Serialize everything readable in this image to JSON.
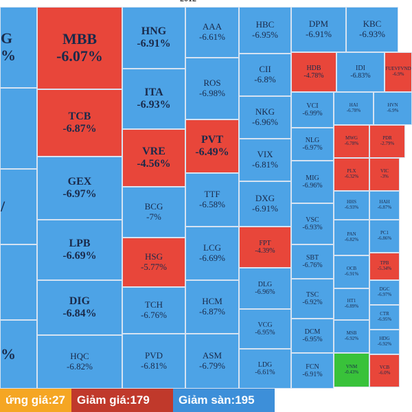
{
  "top_clipped_label": "2012",
  "colors": {
    "up_blue": "#4da3e6",
    "down_red": "#e8463a",
    "ref_green": "#39c23a"
  },
  "tiles": [
    {
      "name": "tile-edge-1",
      "ticker": "G",
      "change": "%",
      "color": "blue"
    },
    {
      "name": "tile-edge-2",
      "ticker": "",
      "change": "",
      "color": "blue"
    },
    {
      "name": "tile-edge-3",
      "ticker": "",
      "change": "/",
      "color": "blue"
    },
    {
      "name": "tile-edge-4",
      "ticker": "",
      "change": "",
      "color": "blue"
    },
    {
      "name": "tile-edge-5",
      "ticker": "",
      "change": "%",
      "color": "blue"
    },
    {
      "name": "tile-mbb",
      "ticker": "MBB",
      "change": "-6.07%",
      "color": "red"
    },
    {
      "name": "tile-tcb",
      "ticker": "TCB",
      "change": "-6.87%",
      "color": "red"
    },
    {
      "name": "tile-gex",
      "ticker": "GEX",
      "change": "-6.97%",
      "color": "blue"
    },
    {
      "name": "tile-lpb",
      "ticker": "LPB",
      "change": "-6.69%",
      "color": "blue"
    },
    {
      "name": "tile-dig",
      "ticker": "DIG",
      "change": "-6.84%",
      "color": "blue"
    },
    {
      "name": "tile-hqc",
      "ticker": "HQC",
      "change": "-6.82%",
      "color": "blue"
    },
    {
      "name": "tile-hng",
      "ticker": "HNG",
      "change": "-6.91%",
      "color": "blue"
    },
    {
      "name": "tile-ita",
      "ticker": "ITA",
      "change": "-6.93%",
      "color": "blue"
    },
    {
      "name": "tile-vre",
      "ticker": "VRE",
      "change": "-4.56%",
      "color": "red"
    },
    {
      "name": "tile-bcg",
      "ticker": "BCG",
      "change": "-7%",
      "color": "blue"
    },
    {
      "name": "tile-hsg",
      "ticker": "HSG",
      "change": "-5.77%",
      "color": "red"
    },
    {
      "name": "tile-tch",
      "ticker": "TCH",
      "change": "-6.76%",
      "color": "blue"
    },
    {
      "name": "tile-pvd",
      "ticker": "PVD",
      "change": "-6.81%",
      "color": "blue"
    },
    {
      "name": "tile-aaa",
      "ticker": "AAA",
      "change": "-6.61%",
      "color": "blue"
    },
    {
      "name": "tile-ros",
      "ticker": "ROS",
      "change": "-6.98%",
      "color": "blue"
    },
    {
      "name": "tile-pvt",
      "ticker": "PVT",
      "change": "-6.49%",
      "color": "red"
    },
    {
      "name": "tile-ttf",
      "ticker": "TTF",
      "change": "-6.58%",
      "color": "blue"
    },
    {
      "name": "tile-lcg",
      "ticker": "LCG",
      "change": "-6.69%",
      "color": "blue"
    },
    {
      "name": "tile-hcm",
      "ticker": "HCM",
      "change": "-6.87%",
      "color": "blue"
    },
    {
      "name": "tile-asm",
      "ticker": "ASM",
      "change": "-6.79%",
      "color": "blue"
    },
    {
      "name": "tile-hbc",
      "ticker": "HBC",
      "change": "-6.95%",
      "color": "blue"
    },
    {
      "name": "tile-cii",
      "ticker": "CII",
      "change": "-6.8%",
      "color": "blue"
    },
    {
      "name": "tile-nkg",
      "ticker": "NKG",
      "change": "-6.96%",
      "color": "blue"
    },
    {
      "name": "tile-vix",
      "ticker": "VIX",
      "change": "-6.81%",
      "color": "blue"
    },
    {
      "name": "tile-dxg",
      "ticker": "DXG",
      "change": "-6.91%",
      "color": "blue"
    },
    {
      "name": "tile-fpt",
      "ticker": "FPT",
      "change": "-4.39%",
      "color": "red"
    },
    {
      "name": "tile-dlg",
      "ticker": "DLG",
      "change": "-6.96%",
      "color": "blue"
    },
    {
      "name": "tile-vcg",
      "ticker": "VCG",
      "change": "-6.95%",
      "color": "blue"
    },
    {
      "name": "tile-ldg",
      "ticker": "LDG",
      "change": "-6.61%",
      "color": "blue"
    },
    {
      "name": "tile-dpm",
      "ticker": "DPM",
      "change": "-6.91%",
      "color": "blue"
    },
    {
      "name": "tile-hdb",
      "ticker": "HDB",
      "change": "-4.78%",
      "color": "red"
    },
    {
      "name": "tile-vci",
      "ticker": "VCI",
      "change": "-6.99%",
      "color": "blue"
    },
    {
      "name": "tile-nlg",
      "ticker": "NLG",
      "change": "-6.97%",
      "color": "blue"
    },
    {
      "name": "tile-mig",
      "ticker": "MIG",
      "change": "-6.96%",
      "color": "blue"
    },
    {
      "name": "tile-vsc",
      "ticker": "VSC",
      "change": "-6.93%",
      "color": "blue"
    },
    {
      "name": "tile-sbt",
      "ticker": "SBT",
      "change": "-6.76%",
      "color": "blue"
    },
    {
      "name": "tile-tsc",
      "ticker": "TSC",
      "change": "-6.92%",
      "color": "blue"
    },
    {
      "name": "tile-dcm",
      "ticker": "DCM",
      "change": "-6.95%",
      "color": "blue"
    },
    {
      "name": "tile-fcn",
      "ticker": "FCN",
      "change": "-6.91%",
      "color": "blue"
    },
    {
      "name": "tile-kbc",
      "ticker": "KBC",
      "change": "-6.93%",
      "color": "blue"
    },
    {
      "name": "tile-idi",
      "ticker": "IDI",
      "change": "-6.83%",
      "color": "blue"
    },
    {
      "name": "tile-hai",
      "ticker": "HAI",
      "change": "-6.78%",
      "color": "blue"
    },
    {
      "name": "tile-mwg",
      "ticker": "MWG",
      "change": "-6.78%",
      "color": "red"
    },
    {
      "name": "tile-plx",
      "ticker": "PLX",
      "change": "-6.32%",
      "color": "red"
    },
    {
      "name": "tile-hhs",
      "ticker": "HHS",
      "change": "-6.93%",
      "color": "blue"
    },
    {
      "name": "tile-pan",
      "ticker": "PAN",
      "change": "-6.82%",
      "color": "blue"
    },
    {
      "name": "tile-ocb",
      "ticker": "OCB",
      "change": "-6.91%",
      "color": "blue"
    },
    {
      "name": "tile-ht1",
      "ticker": "HT1",
      "change": "-6.89%",
      "color": "blue"
    },
    {
      "name": "tile-msb",
      "ticker": "MSB",
      "change": "-6.92%",
      "color": "blue"
    },
    {
      "name": "tile-vnm",
      "ticker": "VNM",
      "change": "-0.43%",
      "color": "green"
    },
    {
      "name": "tile-fuevfvnd",
      "ticker": "FUEVFVND",
      "change": "-6.9%",
      "color": "red"
    },
    {
      "name": "tile-hvn",
      "ticker": "HVN",
      "change": "-6.9%",
      "color": "blue"
    },
    {
      "name": "tile-pdr",
      "ticker": "PDR",
      "change": "-2.79%",
      "color": "red"
    },
    {
      "name": "tile-vic",
      "ticker": "VIC",
      "change": "-3%",
      "color": "red"
    },
    {
      "name": "tile-hah",
      "ticker": "HAH",
      "change": "-6.87%",
      "color": "blue"
    },
    {
      "name": "tile-pc1",
      "ticker": "PC1",
      "change": "-6.86%",
      "color": "blue"
    },
    {
      "name": "tile-tpb",
      "ticker": "TPB",
      "change": "-5.34%",
      "color": "red"
    },
    {
      "name": "tile-dgc",
      "ticker": "DGC",
      "change": "-6.97%",
      "color": "blue"
    },
    {
      "name": "tile-ctr",
      "ticker": "CTR",
      "change": "-6.95%",
      "color": "blue"
    },
    {
      "name": "tile-hdg",
      "ticker": "HDG",
      "change": "-6.92%",
      "color": "blue"
    },
    {
      "name": "tile-vcb",
      "ticker": "VCB",
      "change": "-6.0%",
      "color": "red"
    }
  ],
  "footer": {
    "ref_label": "ứng giá: ",
    "ref_count": "27",
    "down_label": "Giảm giá: ",
    "down_count": "179",
    "floor_label": "Giảm sàn: ",
    "floor_count": "195"
  }
}
